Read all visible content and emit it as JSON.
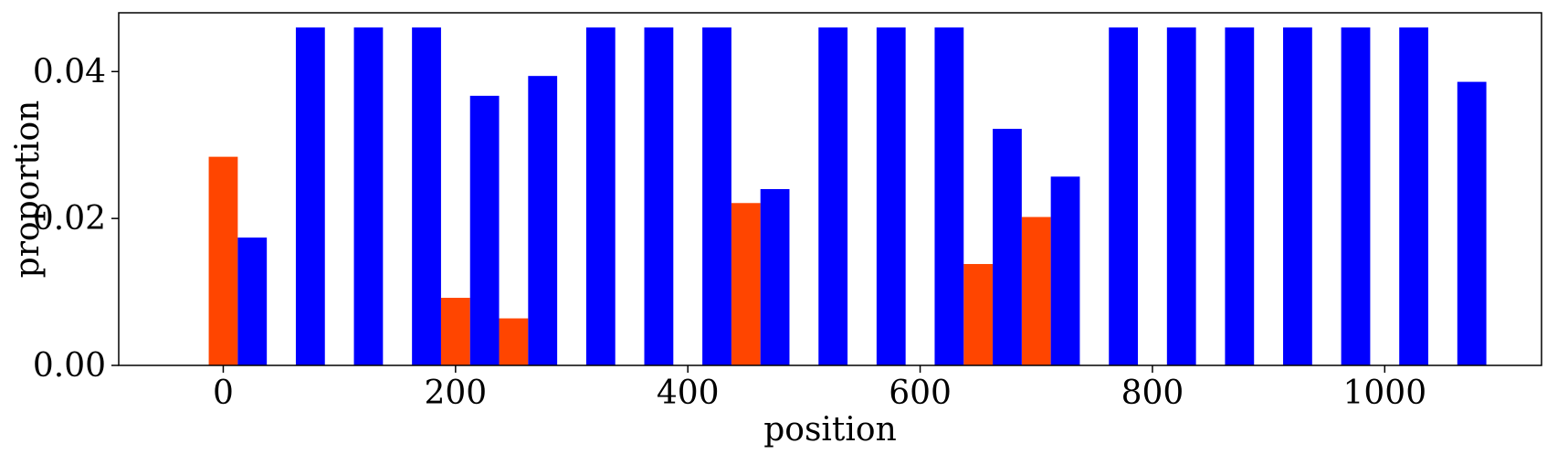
{
  "chart_data": {
    "type": "bar",
    "title": "",
    "xlabel": "position",
    "ylabel": "proportion",
    "xlim": [
      -90,
      1135
    ],
    "ylim": [
      0,
      0.048
    ],
    "x_ticks": [
      0,
      200,
      400,
      600,
      800,
      1000
    ],
    "x_tick_labels": [
      "0",
      "200",
      "400",
      "600",
      "800",
      "1000"
    ],
    "y_ticks": [
      0.0,
      0.02,
      0.04
    ],
    "y_tick_labels": [
      "0.00",
      "0.02",
      "0.04"
    ],
    "grid": false,
    "bar_width": 25,
    "x": [
      0,
      50,
      100,
      150,
      200,
      250,
      300,
      350,
      400,
      450,
      500,
      550,
      600,
      650,
      700,
      750,
      800,
      850,
      900,
      950,
      1000,
      1050
    ],
    "series": [
      {
        "color": "#ff4500",
        "offset": 0,
        "values": [
          0.0284,
          0,
          0,
          0,
          0.0092,
          0.0064,
          0,
          0,
          0,
          0.0221,
          0,
          0,
          0,
          0.0138,
          0.0202,
          0,
          0,
          0,
          0,
          0,
          0,
          0
        ]
      },
      {
        "color": "#0000ff",
        "offset": 25,
        "values": [
          0.0174,
          0.046,
          0.046,
          0.046,
          0.0367,
          0.0394,
          0.046,
          0.046,
          0.046,
          0.024,
          0.046,
          0.046,
          0.046,
          0.0322,
          0.0257,
          0.046,
          0.046,
          0.046,
          0.046,
          0.046,
          0.046,
          0.0386
        ]
      }
    ]
  }
}
